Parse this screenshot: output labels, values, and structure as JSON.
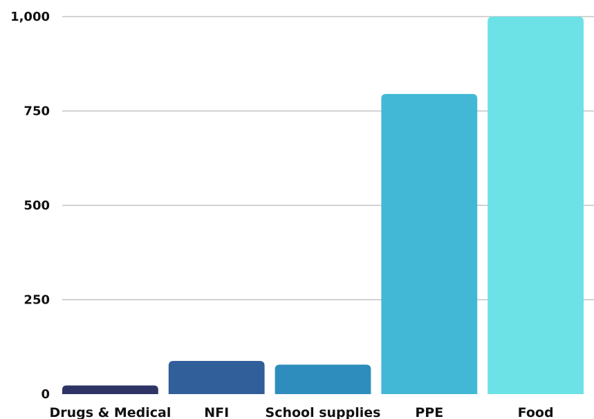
{
  "chart_data": {
    "type": "bar",
    "title": "",
    "xlabel": "",
    "ylabel": "",
    "categories": [
      "Drugs & Medical",
      "NFI",
      "School supplies",
      "PPE",
      "Food"
    ],
    "values": [
      23,
      88,
      78,
      795,
      1000
    ],
    "colors": [
      "#2e3466",
      "#305f9a",
      "#2f8dbd",
      "#43b8d6",
      "#6ce2e6"
    ],
    "ylim": [
      0,
      1000
    ],
    "yticks": [
      0,
      250,
      500,
      750,
      1000
    ],
    "ytick_labels": [
      "0",
      "250",
      "500",
      "750",
      "1,000"
    ],
    "grid": true,
    "legend": "none"
  }
}
